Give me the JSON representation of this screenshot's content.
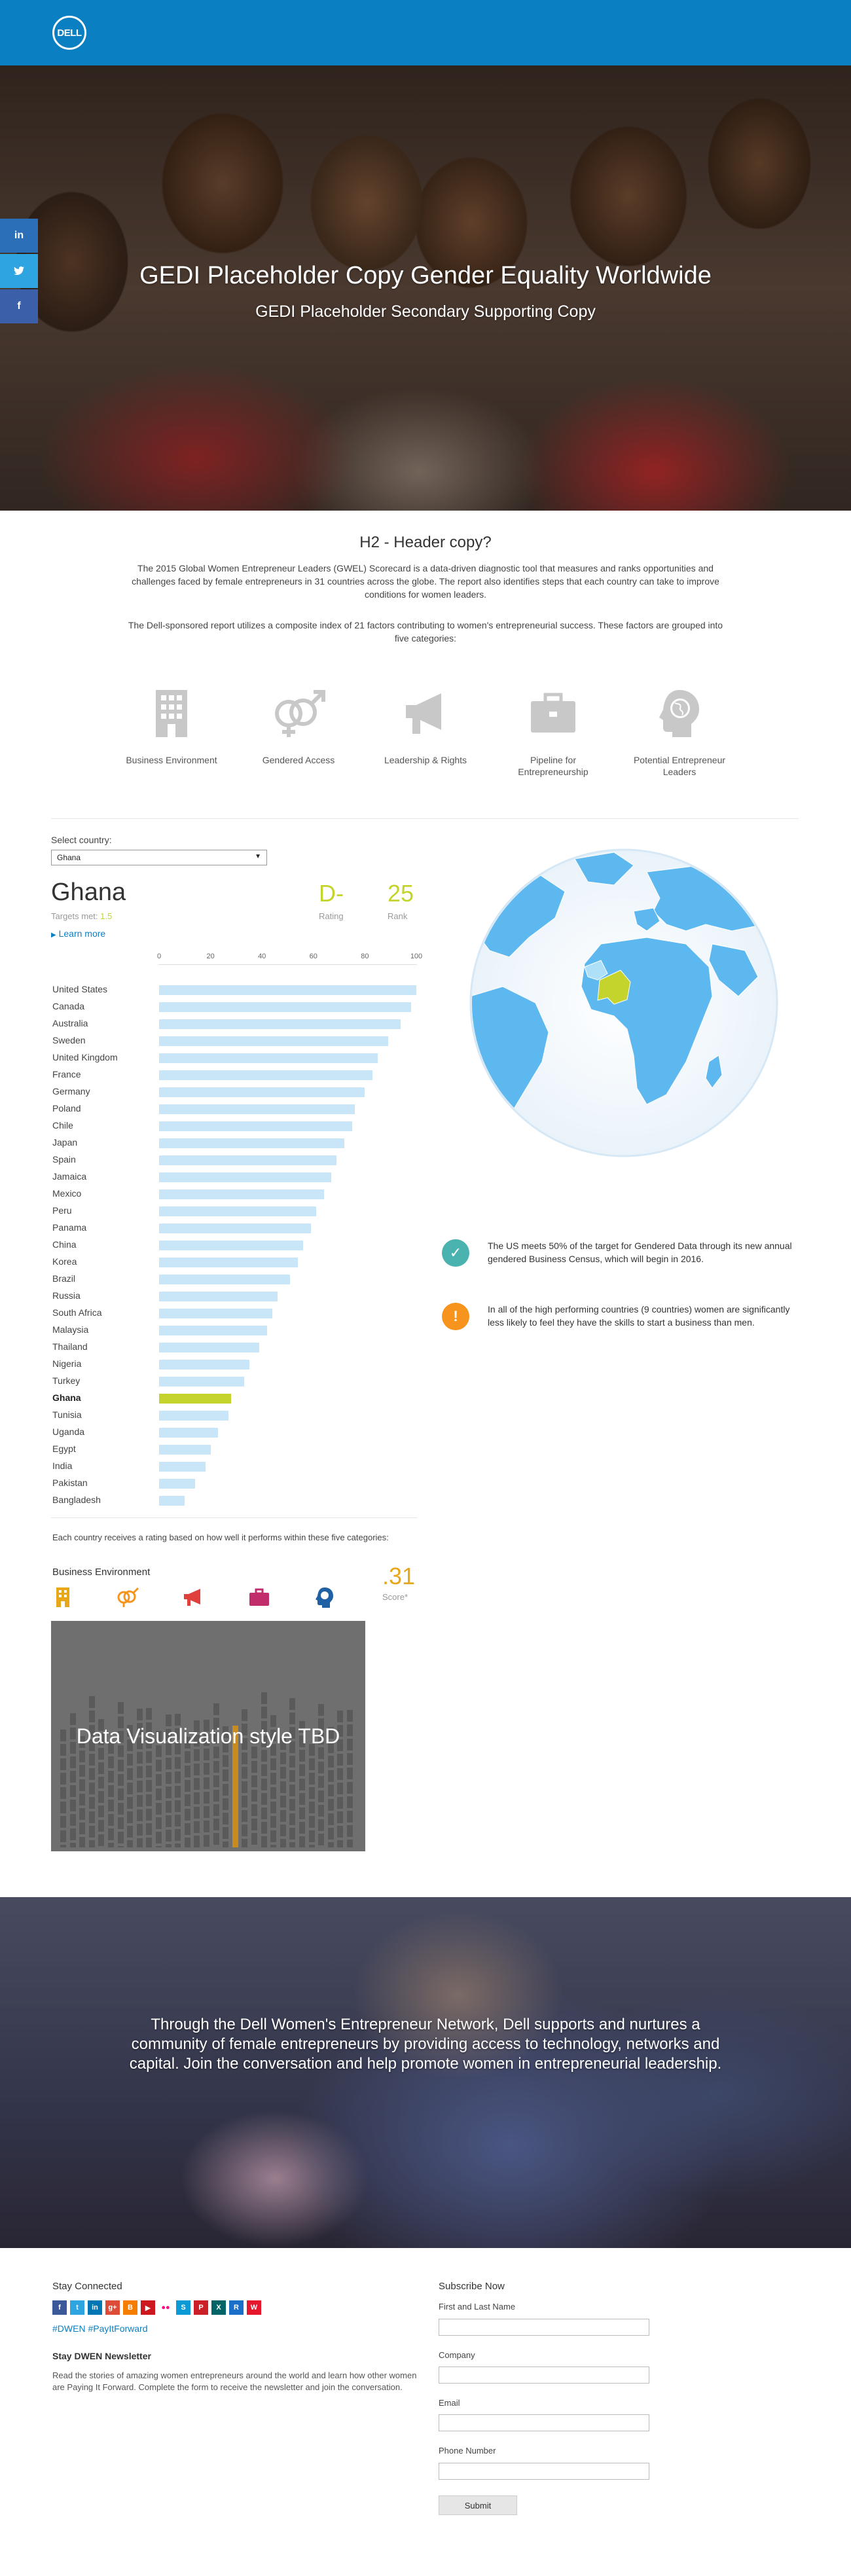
{
  "brand": {
    "logo_text": "DELL",
    "primary": "#0a7fc2",
    "accent_green": "#c4d42d",
    "accent_orange": "#f7941d",
    "accent_teal": "#4ab3b0"
  },
  "hero": {
    "title": "GEDI Placeholder Copy Gender Equality Worldwide",
    "subtitle": "GEDI Placeholder Secondary Supporting Copy",
    "social": [
      "in",
      "t",
      "f"
    ]
  },
  "intro": {
    "heading": "H2 - Header copy?",
    "paragraph1": "The 2015 Global Women Entrepreneur Leaders (GWEL) Scorecard is a data-driven diagnostic tool that measures and ranks opportunities and challenges faced by female entrepreneurs in 31 countries across the globe. The report also identifies steps that each country can take to improve conditions for women leaders.",
    "paragraph2": "The Dell-sponsored report utilizes a composite index of 21 factors contributing to women's entrepreneurial success. These factors are grouped into five categories:"
  },
  "categories": [
    {
      "label": "Business Environment",
      "icon": "building-icon"
    },
    {
      "label": "Gendered Access",
      "icon": "gender-icon"
    },
    {
      "label": "Leadership & Rights",
      "icon": "megaphone-icon"
    },
    {
      "label": "Pipeline for Entrepreneurship",
      "icon": "briefcase-icon"
    },
    {
      "label": "Potential Entrepreneur Leaders",
      "icon": "head-globe-icon"
    }
  ],
  "country_panel": {
    "select_label": "Select country:",
    "selected": "Ghana",
    "country_name": "Ghana",
    "targets_label": "Targets met:",
    "targets_value": "1.5",
    "learn_more": "Learn more",
    "rating": "D-",
    "rating_label": "Rating",
    "rank": "25",
    "rank_label": "Rank"
  },
  "chart_data": {
    "type": "bar",
    "orientation": "horizontal",
    "xlim": [
      0,
      100
    ],
    "xticks": [
      "0",
      "20",
      "40",
      "60",
      "80",
      "100"
    ],
    "highlight": "Ghana",
    "categories": [
      "United States",
      "Canada",
      "Australia",
      "Sweden",
      "United Kingdom",
      "France",
      "Germany",
      "Poland",
      "Chile",
      "Japan",
      "Spain",
      "Jamaica",
      "Mexico",
      "Peru",
      "Panama",
      "China",
      "Korea",
      "Brazil",
      "Russia",
      "South Africa",
      "Malaysia",
      "Thailand",
      "Nigeria",
      "Turkey",
      "Ghana",
      "Tunisia",
      "Uganda",
      "Egypt",
      "India",
      "Pakistan",
      "Bangladesh"
    ],
    "values": [
      100,
      98,
      94,
      89,
      85,
      83,
      80,
      76,
      75,
      72,
      69,
      67,
      64,
      61,
      59,
      56,
      54,
      51,
      46,
      44,
      42,
      39,
      35,
      33,
      28,
      27,
      23,
      20,
      18,
      14,
      10
    ]
  },
  "callouts": [
    {
      "icon": "check-icon",
      "color": "#4ab3b0",
      "text": "The US meets 50% of the target for Gendered Data through its new annual gendered Business Census, which will begin in 2016."
    },
    {
      "icon": "exclamation-icon",
      "color": "#f7941d",
      "text": "In all of the high performing countries (9 countries) women are significantly less likely to feel they have the skills to start a business than men."
    }
  ],
  "rating_section": {
    "note": "Each country receives a rating based on how well it performs within these five categories:",
    "category_title": "Business Environment",
    "score": ".31",
    "score_label": "Score*",
    "viz_text": "Data Visualization style TBD"
  },
  "lab": {
    "text": "Through the Dell Women's Entrepreneur Network, Dell supports and nurtures a community of female entrepreneurs by providing access to technology, networks and capital. Join the conversation and help promote women in entrepreneurial leadership."
  },
  "footer": {
    "stay_connected": "Stay Connected",
    "hashtag": "#DWEN #PayItForward",
    "newsletter_title": "Stay DWEN Newsletter",
    "newsletter_text": "Read the stories of amazing women entrepreneurs around the world and learn how other women are Paying It Forward. Complete the form to receive the newsletter and join the conversation.",
    "subscribe_title": "Subscribe Now",
    "fields": [
      "First and Last Name",
      "Company",
      "Email",
      "Phone Number"
    ],
    "submit": "Submit",
    "social_icons": [
      "facebook-icon",
      "twitter-icon",
      "linkedin-icon",
      "googleplus-icon",
      "blogger-icon",
      "youtube-icon",
      "flickr-icon",
      "slideshare-icon",
      "pinterest-icon",
      "xing-icon",
      "renren-icon",
      "weibo-icon"
    ]
  }
}
